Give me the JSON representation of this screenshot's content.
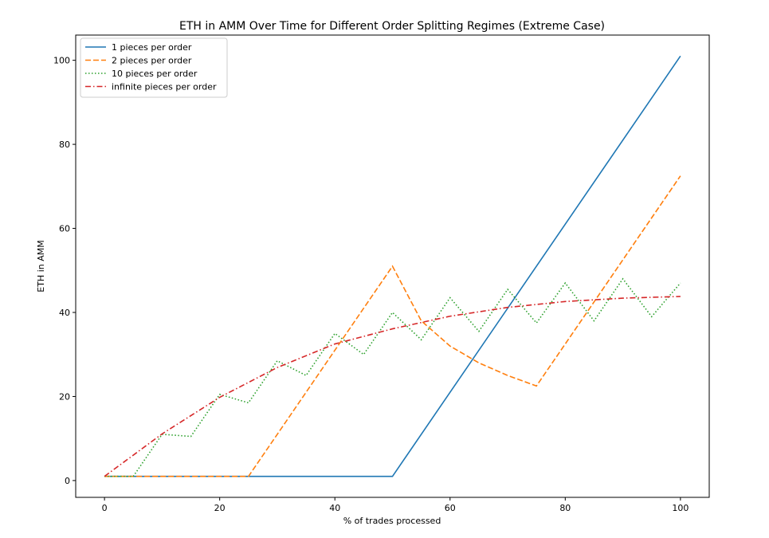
{
  "chart_data": {
    "type": "line",
    "title": "ETH in AMM Over Time for Different Order Splitting Regimes (Extreme Case)",
    "xlabel": "% of trades processed",
    "ylabel": "ETH in AMM",
    "xlim": [
      -5,
      105
    ],
    "ylim": [
      -4,
      106
    ],
    "xticks": [
      0,
      20,
      40,
      60,
      80,
      100
    ],
    "yticks": [
      0,
      20,
      40,
      60,
      80,
      100
    ],
    "grid": false,
    "legend_position": "upper left",
    "series": [
      {
        "name": "1 pieces per order",
        "color": "#1f77b4",
        "style": "solid",
        "x": [
          0,
          50,
          100
        ],
        "y": [
          1,
          1,
          101
        ]
      },
      {
        "name": "2 pieces per order",
        "color": "#ff7f0e",
        "style": "dashed",
        "x": [
          0,
          25,
          50,
          55,
          60,
          65,
          70,
          75,
          100
        ],
        "y": [
          1,
          1,
          51,
          38,
          32,
          28,
          25,
          22.5,
          72.5
        ]
      },
      {
        "name": "10 pieces per order",
        "color": "#2ca02c",
        "style": "dotted",
        "x": [
          0,
          5,
          10,
          15,
          20,
          25,
          30,
          35,
          40,
          45,
          50,
          55,
          60,
          65,
          70,
          75,
          80,
          85,
          90,
          95,
          100
        ],
        "y": [
          1,
          1,
          11,
          10.5,
          20.5,
          18.5,
          28.5,
          25,
          35,
          30,
          40,
          33.5,
          43.5,
          35.5,
          45.5,
          37.5,
          47,
          38,
          48,
          39,
          47
        ]
      },
      {
        "name": "infinite pieces per order",
        "color": "#d62728",
        "style": "dashdot",
        "x": [
          0,
          10,
          20,
          30,
          40,
          50,
          60,
          70,
          80,
          90,
          100
        ],
        "y": [
          1,
          11.1,
          19.8,
          26.9,
          32.5,
          36.1,
          39.1,
          41.2,
          42.6,
          43.4,
          43.8
        ]
      }
    ]
  }
}
